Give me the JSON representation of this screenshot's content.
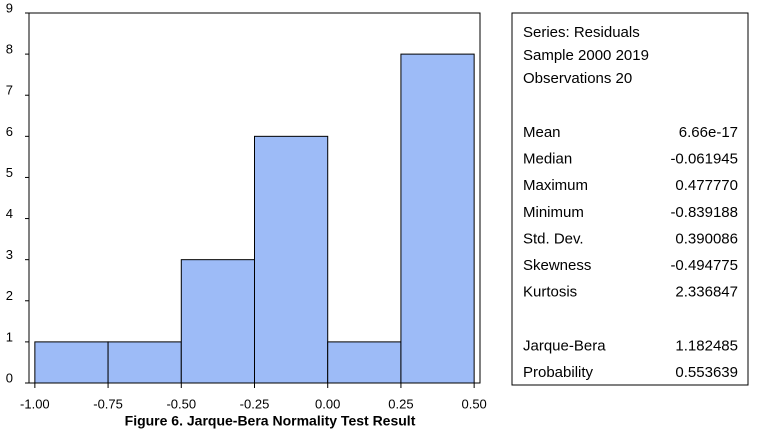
{
  "chart_data": {
    "type": "histogram",
    "title": "Figure 6. Jarque-Bera Normality Test Result",
    "bins": [
      -1.0,
      -0.75,
      -0.5,
      -0.25,
      0,
      0.25,
      0.5
    ],
    "values": [
      1,
      1,
      3,
      6,
      1,
      8
    ],
    "color": "#9dbbf7",
    "xlim": [
      -1.02,
      0.52
    ],
    "xticks": [
      {
        "value": -1.0,
        "label": "-1.00"
      },
      {
        "value": -0.75,
        "label": "-0.75"
      },
      {
        "value": -0.5,
        "label": "-0.50"
      },
      {
        "value": -0.25,
        "label": "-0.25"
      },
      {
        "value": 0,
        "label": "0.00"
      },
      {
        "value": 0.25,
        "label": "0.25"
      },
      {
        "value": 0.5,
        "label": "0.50"
      }
    ],
    "ylim": [
      0,
      9
    ],
    "yticks": [
      0,
      1,
      2,
      3,
      4,
      5,
      6,
      7,
      8,
      9
    ],
    "stats": {
      "lines": [
        "Series: Residuals",
        "Sample 2000 2019",
        "Observations 20"
      ],
      "rows": [
        [
          "Mean",
          "6.66e-17"
        ],
        [
          "Median",
          "-0.061945"
        ],
        [
          "Maximum",
          "0.477770"
        ],
        [
          "Minimum",
          "-0.839188"
        ],
        [
          "Std. Dev.",
          "0.390086"
        ],
        [
          "Skewness",
          "-0.494775"
        ],
        [
          "Kurtosis",
          "2.336847"
        ],
        [
          "Jarque-Bera",
          "1.182485"
        ],
        [
          "Probability",
          "0.553639"
        ]
      ]
    }
  }
}
